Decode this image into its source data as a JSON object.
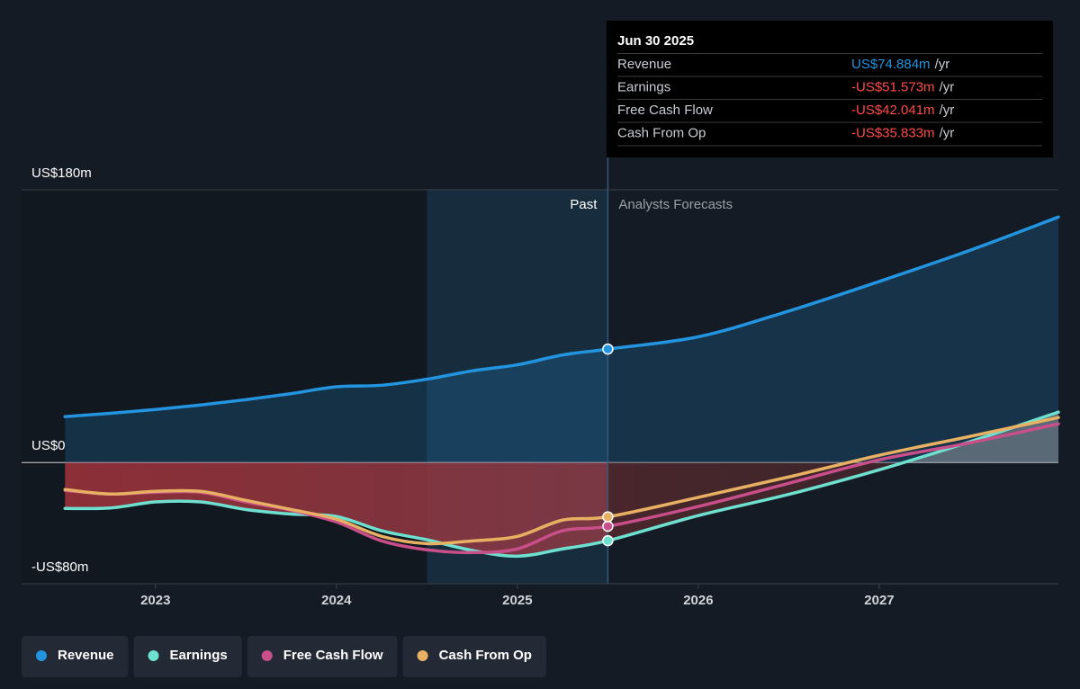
{
  "chart_data": {
    "type": "line",
    "x": [
      2022.5,
      2022.75,
      2023,
      2023.25,
      2023.5,
      2023.75,
      2024,
      2024.25,
      2024.5,
      2024.75,
      2025,
      2025.25,
      2025.5,
      2026,
      2026.5,
      2027,
      2027.5,
      2027.99
    ],
    "series": [
      {
        "name": "Revenue",
        "color": "#2394df",
        "values": [
          30.3,
          32.5,
          35,
          38,
          41.5,
          45.5,
          50,
          51,
          55,
          60.5,
          64.5,
          71,
          74.884,
          83,
          100,
          119.5,
          140,
          162
        ]
      },
      {
        "name": "Earnings",
        "color": "#6ee0cf",
        "values": [
          -30.3,
          -30,
          -26,
          -26,
          -31,
          -34,
          -35.6,
          -45,
          -51,
          -58,
          -61.8,
          -57,
          -51.573,
          -35,
          -21,
          -4.8,
          13.7,
          33.3
        ]
      },
      {
        "name": "Free Cash Flow",
        "color": "#c94f8a",
        "values": [
          -18.4,
          -20.8,
          -19.6,
          -19.6,
          -26,
          -31.5,
          -39.2,
          -51.7,
          -57.6,
          -59.4,
          -57,
          -45,
          -42.041,
          -29,
          -13.7,
          1.8,
          13,
          25.5
        ]
      },
      {
        "name": "Cash From Op",
        "color": "#e8b062",
        "values": [
          -17.8,
          -20.8,
          -19,
          -19,
          -25,
          -31,
          -37.4,
          -48.7,
          -53.5,
          -51.7,
          -48.7,
          -38,
          -35.833,
          -23,
          -9.5,
          4.8,
          17.2,
          29.7
        ]
      }
    ],
    "xlim": [
      2022.26,
      2027.99
    ],
    "xticks": [
      2023,
      2024,
      2025,
      2026,
      2027
    ],
    "ylim": [
      -80,
      180
    ],
    "yticks": [
      {
        "value": 180,
        "label": "US$180m"
      },
      {
        "value": 0,
        "label": "US$0"
      },
      {
        "value": -80,
        "label": "-US$80m"
      }
    ],
    "highlight_start": 2024.5,
    "forecast_start": 2025.5,
    "annotations": {
      "past": "Past",
      "forecast": "Analysts Forecasts"
    },
    "tooltip": {
      "date": "Jun 30 2025",
      "unit": "/yr",
      "values": [
        "US$74.884m",
        "-US$51.573m",
        "-US$42.041m",
        "-US$35.833m"
      ],
      "colors": [
        "#2394df",
        "#ff4a4a",
        "#ff4a4a",
        "#ff4a4a"
      ]
    }
  }
}
